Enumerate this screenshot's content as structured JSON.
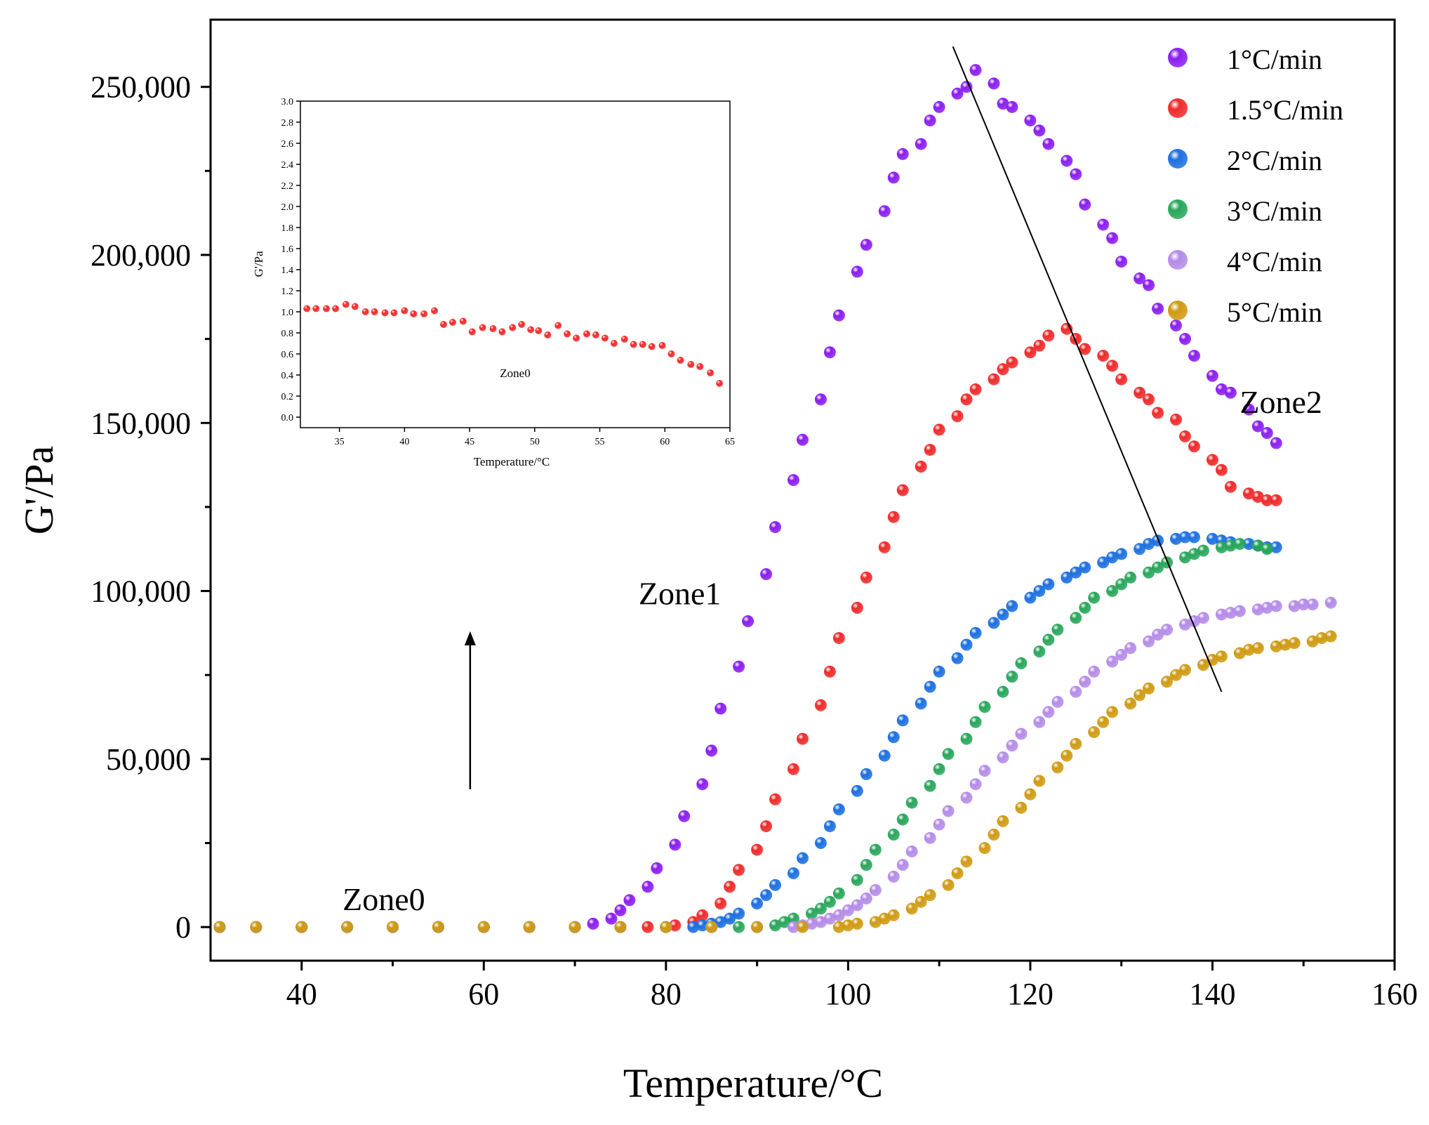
{
  "colors": {
    "1°C/min": "#8a1df0",
    "1.5°C/min": "#ef2a2a",
    "2°C/min": "#1c6fe0",
    "3°C/min": "#28a65a",
    "4°C/min": "#b48be8",
    "5°C/min": "#cf9a12"
  },
  "chart_data": [
    {
      "type": "scatter",
      "title": "",
      "xlabel": "Temperature/°C",
      "ylabel": "G'/Pa",
      "xlim": [
        30,
        160
      ],
      "ylim": [
        -10000,
        270000
      ],
      "xticks": [
        40,
        60,
        80,
        100,
        120,
        140,
        160
      ],
      "yticks": [
        0,
        50000,
        100000,
        150000,
        200000,
        250000
      ],
      "ytick_labels": [
        "0",
        "50,000",
        "100,000",
        "150,000",
        "200,000",
        "250,000"
      ],
      "legend_position": "top-right",
      "series": [
        {
          "name": "1°C/min",
          "x": [
            31,
            35,
            40,
            45,
            50,
            55,
            60,
            65,
            70,
            72,
            74,
            75,
            76,
            78,
            79,
            81,
            82,
            84,
            85,
            86,
            88,
            89,
            91,
            92,
            94,
            95,
            97,
            98,
            99,
            101,
            102,
            104,
            105,
            106,
            108,
            109,
            110,
            112,
            113,
            114,
            116,
            117,
            118,
            120,
            121,
            122,
            124,
            125,
            126,
            128,
            129,
            130,
            132,
            133,
            134,
            136,
            137,
            138,
            140,
            141,
            142,
            144,
            145,
            146,
            147
          ],
          "y": [
            0,
            0,
            0,
            0,
            0,
            0,
            0,
            0,
            0,
            1000,
            2500,
            5000,
            8000,
            12000,
            17500,
            24500,
            33000,
            42500,
            52500,
            65000,
            77500,
            91000,
            105000,
            119000,
            133000,
            145000,
            157000,
            171000,
            182000,
            195000,
            203000,
            213000,
            223000,
            230000,
            233000,
            240000,
            244000,
            248000,
            250000,
            255000,
            251000,
            245000,
            244000,
            240000,
            237000,
            233000,
            228000,
            224000,
            215000,
            209000,
            205000,
            198000,
            193000,
            191000,
            184000,
            179000,
            175000,
            170000,
            164000,
            160000,
            159000,
            154000,
            149000,
            147000,
            144000
          ]
        },
        {
          "name": "1.5°C/min",
          "x": [
            31,
            35,
            40,
            45,
            50,
            55,
            60,
            65,
            70,
            75,
            78,
            80,
            81,
            83,
            84,
            86,
            87,
            88,
            90,
            91,
            92,
            94,
            95,
            97,
            98,
            99,
            101,
            102,
            104,
            105,
            106,
            108,
            109,
            110,
            112,
            113,
            114,
            116,
            117,
            118,
            120,
            121,
            122,
            124,
            125,
            126,
            128,
            129,
            130,
            132,
            133,
            134,
            136,
            137,
            138,
            140,
            141,
            142,
            144,
            145,
            146,
            147
          ],
          "y": [
            0,
            0,
            0,
            0,
            0,
            0,
            0,
            0,
            0,
            0,
            0,
            0,
            500,
            1500,
            3500,
            7000,
            12000,
            17000,
            23000,
            30000,
            38000,
            47000,
            56000,
            66000,
            76000,
            86000,
            95000,
            104000,
            113000,
            122000,
            130000,
            137000,
            142000,
            148000,
            152000,
            157000,
            160000,
            163000,
            166000,
            168000,
            171000,
            173000,
            176000,
            178000,
            175000,
            172000,
            170000,
            167000,
            163000,
            159000,
            157000,
            153000,
            151000,
            146000,
            143000,
            139000,
            136000,
            131000,
            129000,
            128000,
            127000,
            127000
          ]
        },
        {
          "name": "2°C/min",
          "x": [
            31,
            35,
            40,
            45,
            50,
            55,
            60,
            65,
            70,
            75,
            80,
            83,
            84,
            85,
            86,
            87,
            88,
            90,
            91,
            92,
            94,
            95,
            97,
            98,
            99,
            101,
            102,
            104,
            105,
            106,
            108,
            109,
            110,
            112,
            113,
            114,
            116,
            117,
            118,
            120,
            121,
            122,
            124,
            125,
            126,
            128,
            129,
            130,
            132,
            133,
            134,
            136,
            137,
            138,
            140,
            141,
            142,
            144,
            145,
            146,
            147
          ],
          "y": [
            0,
            0,
            0,
            0,
            0,
            0,
            0,
            0,
            0,
            0,
            0,
            0,
            500,
            1000,
            1500,
            2500,
            4000,
            7000,
            9500,
            12500,
            16000,
            20500,
            25000,
            30000,
            35000,
            40500,
            45500,
            51000,
            56500,
            61500,
            66500,
            71500,
            76000,
            80000,
            84000,
            87500,
            90500,
            93000,
            95500,
            98000,
            100000,
            102000,
            104000,
            105500,
            107000,
            108500,
            110000,
            111000,
            112500,
            114000,
            115000,
            115500,
            116000,
            116000,
            115500,
            115000,
            114500,
            114000,
            113500,
            113000,
            113000
          ]
        },
        {
          "name": "3°C/min",
          "x": [
            31,
            35,
            40,
            45,
            50,
            55,
            60,
            65,
            70,
            75,
            80,
            85,
            88,
            90,
            92,
            93,
            94,
            96,
            97,
            98,
            99,
            101,
            102,
            103,
            105,
            106,
            107,
            109,
            110,
            111,
            113,
            114,
            115,
            117,
            118,
            119,
            121,
            122,
            123,
            125,
            126,
            127,
            129,
            130,
            131,
            133,
            134,
            135,
            137,
            138,
            139,
            141,
            142,
            143,
            145,
            146
          ],
          "y": [
            0,
            0,
            0,
            0,
            0,
            0,
            0,
            0,
            0,
            0,
            0,
            0,
            0,
            0,
            500,
            1500,
            2500,
            4000,
            5500,
            7500,
            10000,
            14000,
            18500,
            23000,
            27500,
            32000,
            37000,
            42000,
            47000,
            51500,
            56000,
            61000,
            65500,
            70000,
            74500,
            78500,
            82000,
            85500,
            88500,
            92000,
            95000,
            98000,
            100000,
            102000,
            104000,
            105500,
            107000,
            108500,
            110000,
            111000,
            112000,
            113000,
            113500,
            114000,
            113500,
            112500
          ]
        },
        {
          "name": "4°C/min",
          "x": [
            31,
            35,
            40,
            45,
            50,
            55,
            60,
            65,
            70,
            75,
            80,
            85,
            90,
            94,
            95,
            96,
            97,
            98,
            99,
            100,
            101,
            102,
            103,
            105,
            106,
            107,
            109,
            110,
            111,
            113,
            114,
            115,
            117,
            118,
            119,
            121,
            122,
            123,
            125,
            126,
            127,
            129,
            130,
            131,
            133,
            134,
            135,
            137,
            138,
            139,
            141,
            142,
            143,
            145,
            146,
            147,
            149,
            150,
            151,
            153
          ],
          "y": [
            0,
            0,
            0,
            0,
            0,
            0,
            0,
            0,
            0,
            0,
            0,
            0,
            0,
            0,
            500,
            1000,
            1500,
            2500,
            3500,
            5000,
            6500,
            8500,
            11000,
            15000,
            18500,
            22500,
            26500,
            30500,
            34500,
            38500,
            42500,
            46500,
            50500,
            54000,
            57500,
            61000,
            64000,
            67000,
            70000,
            73000,
            76000,
            79000,
            81000,
            83000,
            85000,
            87000,
            88500,
            90000,
            91000,
            92000,
            93000,
            93500,
            94000,
            94500,
            95000,
            95500,
            95500,
            96000,
            96000,
            96500
          ]
        },
        {
          "name": "5°C/min",
          "x": [
            31,
            35,
            40,
            45,
            50,
            55,
            60,
            65,
            70,
            75,
            80,
            85,
            90,
            95,
            99,
            100,
            101,
            103,
            104,
            105,
            107,
            108,
            109,
            111,
            112,
            113,
            115,
            116,
            117,
            119,
            120,
            121,
            123,
            124,
            125,
            127,
            128,
            129,
            131,
            132,
            133,
            135,
            136,
            137,
            139,
            140,
            141,
            143,
            144,
            145,
            147,
            148,
            149,
            151,
            152,
            153
          ],
          "y": [
            0,
            0,
            0,
            0,
            0,
            0,
            0,
            0,
            0,
            0,
            0,
            0,
            0,
            0,
            0,
            500,
            1000,
            1500,
            2500,
            3500,
            5500,
            7500,
            9500,
            12500,
            16000,
            19500,
            23500,
            27500,
            31500,
            35500,
            39500,
            43500,
            47500,
            51000,
            54500,
            58000,
            61000,
            64000,
            66500,
            69000,
            71000,
            73000,
            75000,
            76500,
            78000,
            79500,
            80500,
            81500,
            82500,
            83000,
            83500,
            84000,
            84500,
            85000,
            86000,
            86500
          ]
        }
      ],
      "legend": [
        "1°C/min",
        "1.5°C/min",
        "2°C/min",
        "3°C/min",
        "4°C/min",
        "5°C/min"
      ],
      "annotations": [
        {
          "text": "Zone0",
          "x": 44.5,
          "y": 5000
        },
        {
          "text": "Zone1",
          "x": 77,
          "y": 96000
        },
        {
          "text": "Zone2",
          "x": 143,
          "y": 153000
        }
      ],
      "trend_line": {
        "x": [
          111.5,
          141
        ],
        "y": [
          262000,
          70000
        ]
      },
      "arrow": {
        "x": 58.5,
        "y_start": 41000,
        "y_end": 88000
      }
    },
    {
      "type": "scatter",
      "title": "",
      "xlabel": "Temperature/°C",
      "ylabel": "G'/Pa",
      "xlim": [
        32,
        65
      ],
      "ylim": [
        -0.1,
        3.0
      ],
      "xticks": [
        35,
        40,
        45,
        50,
        55,
        60,
        65
      ],
      "yticks": [
        0.0,
        0.2,
        0.4,
        0.6,
        0.8,
        1.0,
        1.2,
        1.4,
        1.6,
        1.8,
        2.0,
        2.2,
        2.4,
        2.6,
        2.8,
        3.0
      ],
      "ytick_labels": [
        "0.0",
        "0.2",
        "0.4",
        "0.6",
        "0.8",
        "1.0",
        "1.2",
        "1.4",
        "1.6",
        "1.8",
        "2.0",
        "2.2",
        "2.4",
        "2.6",
        "2.8",
        "3.0"
      ],
      "series": [
        {
          "name": "1.5°C/min",
          "x": [
            32.5,
            33.2,
            34,
            34.7,
            35.5,
            36.2,
            37,
            37.7,
            38.5,
            39.2,
            40,
            40.7,
            41.5,
            42.3,
            43,
            43.7,
            44.5,
            45.2,
            46,
            46.8,
            47.5,
            48.3,
            49,
            49.7,
            50.3,
            51,
            51.8,
            52.5,
            53.2,
            54,
            54.7,
            55.4,
            56.1,
            56.9,
            57.6,
            58.3,
            59,
            59.8,
            60.5,
            61.2,
            62,
            62.7,
            63.5,
            64.2
          ],
          "y": [
            1.03,
            1.03,
            1.03,
            1.03,
            1.07,
            1.05,
            1.0,
            1.0,
            0.99,
            0.99,
            1.01,
            0.98,
            0.98,
            1.01,
            0.88,
            0.9,
            0.91,
            0.81,
            0.85,
            0.84,
            0.81,
            0.85,
            0.88,
            0.83,
            0.82,
            0.78,
            0.87,
            0.79,
            0.75,
            0.79,
            0.78,
            0.75,
            0.7,
            0.74,
            0.69,
            0.69,
            0.67,
            0.68,
            0.6,
            0.54,
            0.5,
            0.48,
            0.42,
            0.32
          ]
        }
      ],
      "annotations": [
        {
          "text": "Zone0",
          "x": 48.5,
          "y": 0.38
        }
      ]
    }
  ]
}
